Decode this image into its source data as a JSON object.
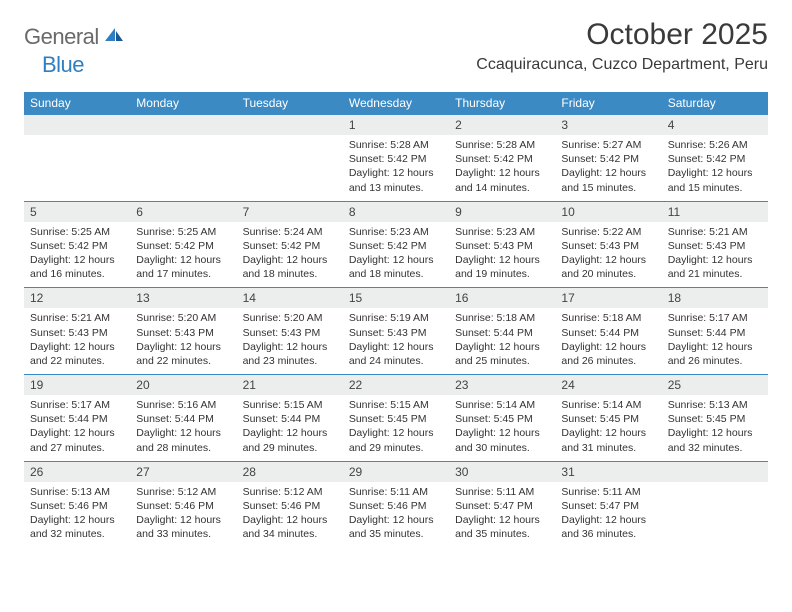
{
  "brand": {
    "part1": "General",
    "part2": "Blue"
  },
  "title": "October 2025",
  "location": "Ccaquiracunca, Cuzco Department, Peru",
  "header_bg": "#3b8ac4",
  "daynum_bg": "#eceded",
  "day_names": [
    "Sunday",
    "Monday",
    "Tuesday",
    "Wednesday",
    "Thursday",
    "Friday",
    "Saturday"
  ],
  "weeks": [
    [
      null,
      null,
      null,
      {
        "num": "1",
        "sunrise": "Sunrise: 5:28 AM",
        "sunset": "Sunset: 5:42 PM",
        "daylight": "Daylight: 12 hours and 13 minutes."
      },
      {
        "num": "2",
        "sunrise": "Sunrise: 5:28 AM",
        "sunset": "Sunset: 5:42 PM",
        "daylight": "Daylight: 12 hours and 14 minutes."
      },
      {
        "num": "3",
        "sunrise": "Sunrise: 5:27 AM",
        "sunset": "Sunset: 5:42 PM",
        "daylight": "Daylight: 12 hours and 15 minutes."
      },
      {
        "num": "4",
        "sunrise": "Sunrise: 5:26 AM",
        "sunset": "Sunset: 5:42 PM",
        "daylight": "Daylight: 12 hours and 15 minutes."
      }
    ],
    [
      {
        "num": "5",
        "sunrise": "Sunrise: 5:25 AM",
        "sunset": "Sunset: 5:42 PM",
        "daylight": "Daylight: 12 hours and 16 minutes."
      },
      {
        "num": "6",
        "sunrise": "Sunrise: 5:25 AM",
        "sunset": "Sunset: 5:42 PM",
        "daylight": "Daylight: 12 hours and 17 minutes."
      },
      {
        "num": "7",
        "sunrise": "Sunrise: 5:24 AM",
        "sunset": "Sunset: 5:42 PM",
        "daylight": "Daylight: 12 hours and 18 minutes."
      },
      {
        "num": "8",
        "sunrise": "Sunrise: 5:23 AM",
        "sunset": "Sunset: 5:42 PM",
        "daylight": "Daylight: 12 hours and 18 minutes."
      },
      {
        "num": "9",
        "sunrise": "Sunrise: 5:23 AM",
        "sunset": "Sunset: 5:43 PM",
        "daylight": "Daylight: 12 hours and 19 minutes."
      },
      {
        "num": "10",
        "sunrise": "Sunrise: 5:22 AM",
        "sunset": "Sunset: 5:43 PM",
        "daylight": "Daylight: 12 hours and 20 minutes."
      },
      {
        "num": "11",
        "sunrise": "Sunrise: 5:21 AM",
        "sunset": "Sunset: 5:43 PM",
        "daylight": "Daylight: 12 hours and 21 minutes."
      }
    ],
    [
      {
        "num": "12",
        "sunrise": "Sunrise: 5:21 AM",
        "sunset": "Sunset: 5:43 PM",
        "daylight": "Daylight: 12 hours and 22 minutes."
      },
      {
        "num": "13",
        "sunrise": "Sunrise: 5:20 AM",
        "sunset": "Sunset: 5:43 PM",
        "daylight": "Daylight: 12 hours and 22 minutes."
      },
      {
        "num": "14",
        "sunrise": "Sunrise: 5:20 AM",
        "sunset": "Sunset: 5:43 PM",
        "daylight": "Daylight: 12 hours and 23 minutes."
      },
      {
        "num": "15",
        "sunrise": "Sunrise: 5:19 AM",
        "sunset": "Sunset: 5:43 PM",
        "daylight": "Daylight: 12 hours and 24 minutes."
      },
      {
        "num": "16",
        "sunrise": "Sunrise: 5:18 AM",
        "sunset": "Sunset: 5:44 PM",
        "daylight": "Daylight: 12 hours and 25 minutes."
      },
      {
        "num": "17",
        "sunrise": "Sunrise: 5:18 AM",
        "sunset": "Sunset: 5:44 PM",
        "daylight": "Daylight: 12 hours and 26 minutes."
      },
      {
        "num": "18",
        "sunrise": "Sunrise: 5:17 AM",
        "sunset": "Sunset: 5:44 PM",
        "daylight": "Daylight: 12 hours and 26 minutes."
      }
    ],
    [
      {
        "num": "19",
        "sunrise": "Sunrise: 5:17 AM",
        "sunset": "Sunset: 5:44 PM",
        "daylight": "Daylight: 12 hours and 27 minutes."
      },
      {
        "num": "20",
        "sunrise": "Sunrise: 5:16 AM",
        "sunset": "Sunset: 5:44 PM",
        "daylight": "Daylight: 12 hours and 28 minutes."
      },
      {
        "num": "21",
        "sunrise": "Sunrise: 5:15 AM",
        "sunset": "Sunset: 5:44 PM",
        "daylight": "Daylight: 12 hours and 29 minutes."
      },
      {
        "num": "22",
        "sunrise": "Sunrise: 5:15 AM",
        "sunset": "Sunset: 5:45 PM",
        "daylight": "Daylight: 12 hours and 29 minutes."
      },
      {
        "num": "23",
        "sunrise": "Sunrise: 5:14 AM",
        "sunset": "Sunset: 5:45 PM",
        "daylight": "Daylight: 12 hours and 30 minutes."
      },
      {
        "num": "24",
        "sunrise": "Sunrise: 5:14 AM",
        "sunset": "Sunset: 5:45 PM",
        "daylight": "Daylight: 12 hours and 31 minutes."
      },
      {
        "num": "25",
        "sunrise": "Sunrise: 5:13 AM",
        "sunset": "Sunset: 5:45 PM",
        "daylight": "Daylight: 12 hours and 32 minutes."
      }
    ],
    [
      {
        "num": "26",
        "sunrise": "Sunrise: 5:13 AM",
        "sunset": "Sunset: 5:46 PM",
        "daylight": "Daylight: 12 hours and 32 minutes."
      },
      {
        "num": "27",
        "sunrise": "Sunrise: 5:12 AM",
        "sunset": "Sunset: 5:46 PM",
        "daylight": "Daylight: 12 hours and 33 minutes."
      },
      {
        "num": "28",
        "sunrise": "Sunrise: 5:12 AM",
        "sunset": "Sunset: 5:46 PM",
        "daylight": "Daylight: 12 hours and 34 minutes."
      },
      {
        "num": "29",
        "sunrise": "Sunrise: 5:11 AM",
        "sunset": "Sunset: 5:46 PM",
        "daylight": "Daylight: 12 hours and 35 minutes."
      },
      {
        "num": "30",
        "sunrise": "Sunrise: 5:11 AM",
        "sunset": "Sunset: 5:47 PM",
        "daylight": "Daylight: 12 hours and 35 minutes."
      },
      {
        "num": "31",
        "sunrise": "Sunrise: 5:11 AM",
        "sunset": "Sunset: 5:47 PM",
        "daylight": "Daylight: 12 hours and 36 minutes."
      },
      null
    ]
  ]
}
